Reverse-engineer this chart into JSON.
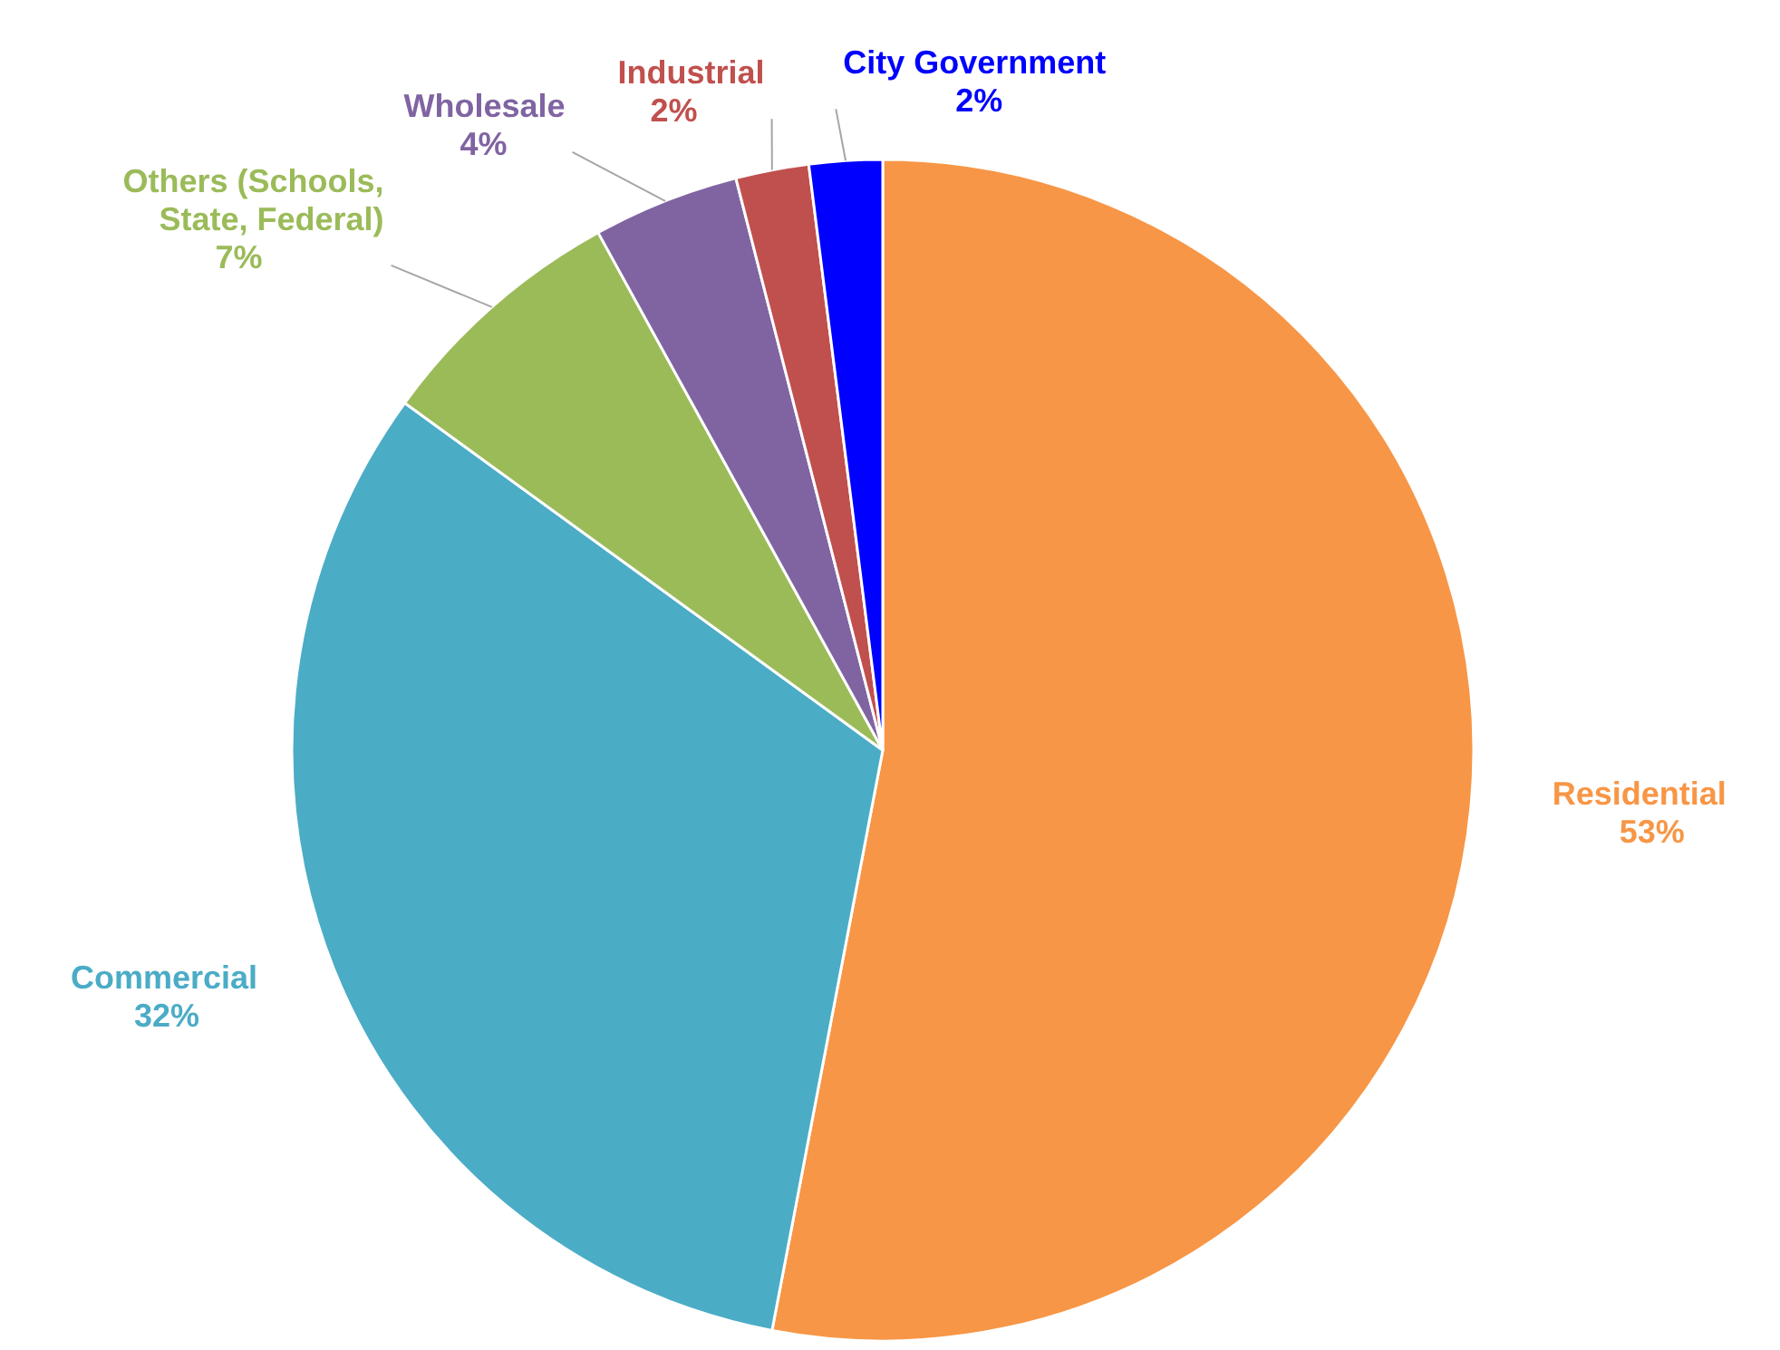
{
  "chart_data": {
    "type": "pie",
    "categories": [
      "Residential",
      "Commercial",
      "Others (Schools, State, Federal)",
      "Wholesale",
      "Industrial",
      "City Government"
    ],
    "values": [
      53,
      32,
      7,
      4,
      2,
      2
    ],
    "colors": [
      "#f79646",
      "#4bacc6",
      "#9bbb59",
      "#8064a2",
      "#c0504d",
      "#0000ff"
    ],
    "value_labels": [
      "53%",
      "32%",
      "7%",
      "4%",
      "2%",
      "2%"
    ]
  }
}
